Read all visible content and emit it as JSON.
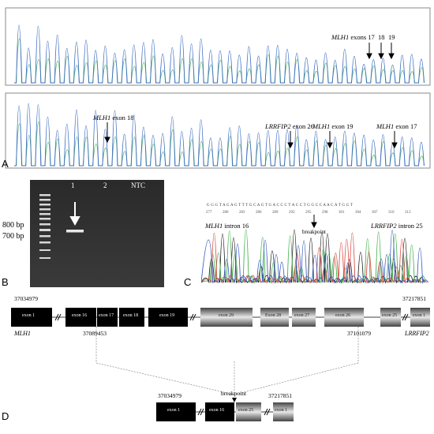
{
  "panel_a": {
    "letter": "A",
    "top_annotations": {
      "gene": "MLH1",
      "exons_text": " exons 17",
      "exon_18": "18",
      "exon_19": "19"
    },
    "bottom_annotations": {
      "mlh1_exon18_gene": "MLH1",
      "mlh1_exon18_text": " exon 18",
      "lrrfip2_gene": "LRRFIP2",
      "lrrfip2_text": " exon 26",
      "mlh1_exon19_gene": "MLH1",
      "mlh1_exon19_text": " exon 19",
      "mlh1_exon17_gene": "MLH1",
      "mlh1_exon17_text": " exon 17"
    }
  },
  "panel_b": {
    "letter": "B",
    "lanes": [
      "M",
      "1",
      "2",
      "NTC"
    ],
    "size_800": "800 bp",
    "size_700": "700 bp"
  },
  "panel_c": {
    "letter": "C",
    "sequence": "G G G T A G A G T T T G C A G T G A C C C T A C C T G G C C A A C A T G G T",
    "positions": [
      "277",
      "280",
      "283",
      "286",
      "289",
      "292",
      "295",
      "298",
      "301",
      "304",
      "307",
      "310",
      "313"
    ],
    "breakpoint": "breakpoint",
    "left_gene": "MLH1",
    "left_text": " intron 16",
    "right_gene": "LRRFIP2",
    "right_text": " intron 25"
  },
  "panel_d": {
    "letter": "D",
    "coord_left": "37034979",
    "coord_right": "37217851",
    "coord_mid_left": "37089453",
    "coord_mid_right": "37101079",
    "gene_left": "MLH1",
    "gene_right": "LRRFIP2",
    "exons_mlh1": [
      "exon 1",
      "exon 16",
      "exon 17",
      "exon 18",
      "exon 19"
    ],
    "exons_lrrfip2": [
      "exon 29",
      "Exon 28",
      "exon 27",
      "exon 26",
      "exon 25",
      "exon 1"
    ],
    "breakpoint": "breakpoint",
    "fused_coord_left": "37034979",
    "fused_coord_right": "37217851",
    "fused_exons": [
      "exon 1",
      "exon 16",
      "exon 25",
      "exon 1"
    ]
  }
}
